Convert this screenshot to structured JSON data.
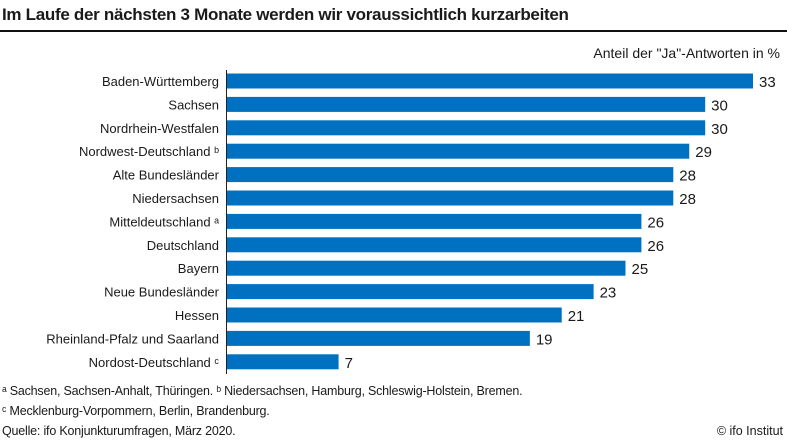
{
  "chart_data": {
    "type": "bar",
    "orientation": "horizontal",
    "title": "Im Laufe der nächsten 3 Monate werden wir voraussichtlich kurzarbeiten",
    "unit_label": "Anteil der \"Ja\"-Antworten in %",
    "categories": [
      "Baden-Württemberg",
      "Sachsen",
      "Nordrhein-Westfalen",
      "Nordwest-Deutschland ᵇ",
      "Alte Bundesländer",
      "Niedersachsen",
      "Mitteldeutschland ᵃ",
      "Deutschland",
      "Bayern",
      "Neue Bundesländer",
      "Hessen",
      "Rheinland-Pfalz und Saarland",
      "Nordost-Deutschland ᶜ"
    ],
    "values": [
      33,
      30,
      30,
      29,
      28,
      28,
      26,
      26,
      25,
      23,
      21,
      19,
      7
    ],
    "xlim": [
      0,
      33
    ],
    "grid": false,
    "bar_color": "#0070C0"
  },
  "footnotes": [
    "ᵃ Sachsen, Sachsen-Anhalt, Thüringen. ᵇ Niedersachsen, Hamburg, Schleswig-Holstein, Bremen.",
    "ᶜ Mecklenburg-Vorpommern, Berlin, Brandenburg.",
    "Quelle: ifo Konjunkturumfragen, März 2020."
  ],
  "copyright": "© ifo Institut"
}
